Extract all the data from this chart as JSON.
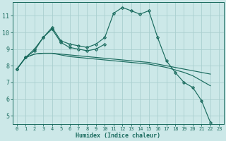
{
  "background_color": "#cce8e8",
  "grid_color": "#aacfcf",
  "line_color": "#1a6b5e",
  "xlabel": "Humidex (Indice chaleur)",
  "xlim": [
    -0.5,
    23.5
  ],
  "ylim": [
    4.5,
    11.8
  ],
  "yticks": [
    5,
    6,
    7,
    8,
    9,
    10,
    11
  ],
  "xticks": [
    0,
    1,
    2,
    3,
    4,
    5,
    6,
    7,
    8,
    9,
    10,
    11,
    12,
    13,
    14,
    15,
    16,
    17,
    18,
    19,
    20,
    21,
    22,
    23
  ],
  "series": [
    {
      "x": [
        0,
        1,
        2,
        3,
        4,
        5,
        6,
        7,
        8,
        9,
        10,
        11,
        12,
        13,
        14,
        15,
        16,
        17,
        18,
        19,
        20,
        21,
        22
      ],
      "y": [
        7.8,
        8.5,
        9.0,
        9.7,
        10.3,
        9.5,
        9.3,
        9.2,
        9.1,
        9.3,
        9.7,
        11.15,
        11.5,
        11.3,
        11.1,
        11.3,
        9.7,
        8.3,
        7.6,
        7.0,
        6.7,
        5.9,
        4.6
      ],
      "marker": "D",
      "markersize": 2.0
    },
    {
      "x": [
        0,
        1,
        2,
        3,
        4,
        5,
        6,
        7,
        8,
        9,
        10
      ],
      "y": [
        7.8,
        8.5,
        8.9,
        9.7,
        10.2,
        9.4,
        9.1,
        9.0,
        8.9,
        9.0,
        9.3
      ],
      "marker": "D",
      "markersize": 2.0
    },
    {
      "x": [
        0,
        1,
        2,
        3,
        4,
        5,
        6,
        7,
        8,
        9,
        10,
        11,
        12,
        13,
        14,
        15,
        16,
        17,
        18,
        19,
        20,
        21,
        22
      ],
      "y": [
        7.8,
        8.5,
        8.7,
        8.75,
        8.75,
        8.7,
        8.65,
        8.6,
        8.55,
        8.5,
        8.45,
        8.4,
        8.35,
        8.3,
        8.25,
        8.2,
        8.1,
        8.0,
        7.9,
        7.8,
        7.7,
        7.6,
        7.5
      ],
      "marker": null,
      "markersize": 0
    },
    {
      "x": [
        0,
        1,
        2,
        3,
        4,
        5,
        6,
        7,
        8,
        9,
        10,
        11,
        12,
        13,
        14,
        15,
        16,
        17,
        18,
        19,
        20,
        21,
        22
      ],
      "y": [
        7.8,
        8.5,
        8.7,
        8.75,
        8.75,
        8.65,
        8.55,
        8.5,
        8.45,
        8.4,
        8.35,
        8.3,
        8.25,
        8.2,
        8.15,
        8.1,
        8.0,
        7.9,
        7.75,
        7.6,
        7.4,
        7.1,
        6.8
      ],
      "marker": null,
      "markersize": 0
    }
  ]
}
